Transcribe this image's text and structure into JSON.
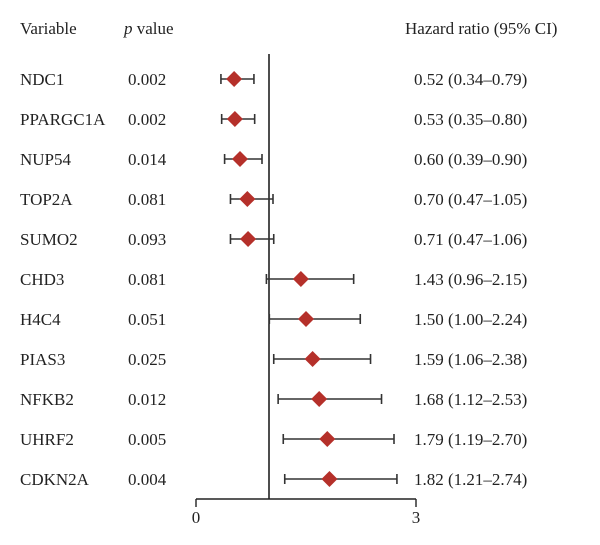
{
  "chart_data": {
    "type": "forest",
    "headers": {
      "variable": "Variable",
      "p_italic": "p",
      "p_rest": " value",
      "hr": "Hazard ratio (95% CI)"
    },
    "xlim": [
      0,
      3
    ],
    "reference_line": 1,
    "xticks": [
      "0",
      "3"
    ],
    "marker_color": "#b5302a",
    "rows": [
      {
        "variable": "NDC1",
        "p": "0.002",
        "hr": 0.52,
        "lo": 0.34,
        "hi": 0.79,
        "label": "0.52 (0.34–0.79)"
      },
      {
        "variable": "PPARGC1A",
        "p": "0.002",
        "hr": 0.53,
        "lo": 0.35,
        "hi": 0.8,
        "label": "0.53 (0.35–0.80)"
      },
      {
        "variable": "NUP54",
        "p": "0.014",
        "hr": 0.6,
        "lo": 0.39,
        "hi": 0.9,
        "label": "0.60 (0.39–0.90)"
      },
      {
        "variable": "TOP2A",
        "p": "0.081",
        "hr": 0.7,
        "lo": 0.47,
        "hi": 1.05,
        "label": "0.70 (0.47–1.05)"
      },
      {
        "variable": "SUMO2",
        "p": "0.093",
        "hr": 0.71,
        "lo": 0.47,
        "hi": 1.06,
        "label": "0.71 (0.47–1.06)"
      },
      {
        "variable": "CHD3",
        "p": "0.081",
        "hr": 1.43,
        "lo": 0.96,
        "hi": 2.15,
        "label": "1.43 (0.96–2.15)"
      },
      {
        "variable": "H4C4",
        "p": "0.051",
        "hr": 1.5,
        "lo": 1.0,
        "hi": 2.24,
        "label": "1.50 (1.00–2.24)"
      },
      {
        "variable": "PIAS3",
        "p": "0.025",
        "hr": 1.59,
        "lo": 1.06,
        "hi": 2.38,
        "label": "1.59 (1.06–2.38)"
      },
      {
        "variable": "NFKB2",
        "p": "0.012",
        "hr": 1.68,
        "lo": 1.12,
        "hi": 2.53,
        "label": "1.68 (1.12–2.53)"
      },
      {
        "variable": "UHRF2",
        "p": "0.005",
        "hr": 1.79,
        "lo": 1.19,
        "hi": 2.7,
        "label": "1.79 (1.19–2.70)"
      },
      {
        "variable": "CDKN2A",
        "p": "0.004",
        "hr": 1.82,
        "lo": 1.21,
        "hi": 2.74,
        "label": "1.82 (1.21–2.74)"
      }
    ]
  }
}
